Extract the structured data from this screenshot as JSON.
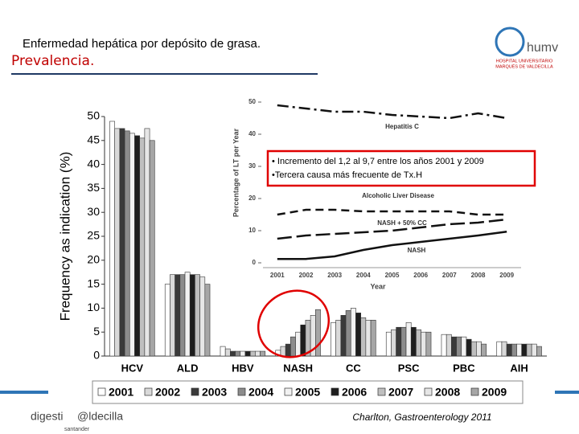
{
  "header": {
    "title": "Enfermedad hepática por depósito de grasa.",
    "subtitle": "Prevalencia."
  },
  "logo": {
    "name": "humv",
    "line1": "HOSPITAL UNIVERSITARIO",
    "line2": "MARQUÉS DE VALDECILLA"
  },
  "annotation": {
    "lines": [
      "• Incremento del 1,2 al 9,7 entre los años 2001  y 2009",
      "•Tercera causa más frecuente de Tx.H"
    ]
  },
  "footer": {
    "logo_a": "digesti",
    "logo_b": "@ldecilla",
    "logo_c": "santander",
    "citation": "Charlton, Gastroenterology 2011"
  },
  "chart_data": [
    {
      "type": "bar",
      "ylabel": "Frequency as indication (%)",
      "categories": [
        "HCV",
        "ALD",
        "HBV",
        "NASH",
        "CC",
        "PSC",
        "PBC",
        "AIH"
      ],
      "ylim": [
        0,
        50
      ],
      "yticks": [
        0,
        5,
        10,
        15,
        20,
        25,
        30,
        35,
        40,
        45,
        50
      ],
      "series": [
        {
          "name": "2001",
          "color": "#ffffff",
          "values": [
            49,
            15,
            2,
            1.2,
            7,
            5,
            4.5,
            3
          ]
        },
        {
          "name": "2002",
          "color": "#d9d9d9",
          "values": [
            47.5,
            17,
            1.5,
            2,
            7.5,
            5.5,
            4.5,
            3
          ]
        },
        {
          "name": "2003",
          "color": "#3a3a3a",
          "values": [
            47.5,
            17,
            1,
            2.5,
            8.5,
            6,
            4,
            2.5
          ]
        },
        {
          "name": "2004",
          "color": "#8c8c8c",
          "values": [
            47,
            17,
            1,
            4,
            9.5,
            6,
            4,
            2.5
          ]
        },
        {
          "name": "2005",
          "color": "#f2f2f2",
          "values": [
            46.5,
            17.5,
            1,
            5,
            10,
            7,
            4,
            2.5
          ]
        },
        {
          "name": "2006",
          "color": "#1e1e1e",
          "values": [
            46,
            17,
            1,
            6.5,
            9,
            6,
            3.5,
            2.5
          ]
        },
        {
          "name": "2007",
          "color": "#bfbfbf",
          "values": [
            45.5,
            17,
            1,
            7.5,
            8,
            5.5,
            3,
            2.5
          ]
        },
        {
          "name": "2008",
          "color": "#e6e6e6",
          "values": [
            47.5,
            16.5,
            1,
            8.5,
            7.5,
            5,
            3,
            2.5
          ]
        },
        {
          "name": "2009",
          "color": "#a6a6a6",
          "values": [
            45,
            15,
            1,
            9.7,
            7.5,
            5,
            2.5,
            2
          ]
        }
      ]
    },
    {
      "type": "line",
      "ylabel": "Percentage of LT per Year",
      "xlabel": "Year",
      "categories": [
        "2001",
        "2002",
        "2003",
        "2004",
        "2005",
        "2006",
        "2007",
        "2008",
        "2009"
      ],
      "ylim": [
        0,
        50
      ],
      "yticks": [
        0,
        10,
        20,
        30,
        40,
        50
      ],
      "series": [
        {
          "name": "Hepatitis C",
          "color": "#111111",
          "line_style": "dash-dot",
          "values": [
            49,
            48,
            47,
            47,
            46,
            45.5,
            45,
            46.5,
            45
          ]
        },
        {
          "name": "Alcoholic Liver Disease",
          "color": "#111111",
          "line_style": "dashed",
          "values": [
            15,
            16.5,
            16.5,
            16,
            16,
            16,
            16,
            15,
            15
          ]
        },
        {
          "name": "NASH + 50% CC",
          "color": "#111111",
          "line_style": "long-dashed",
          "values": [
            7.5,
            8.5,
            9,
            9.5,
            10,
            11,
            12,
            12.5,
            13.5
          ]
        },
        {
          "name": "NASH",
          "color": "#111111",
          "line_style": "solid",
          "values": [
            1.2,
            1.2,
            2,
            4,
            5.5,
            6.5,
            7.5,
            8.5,
            9.7
          ]
        }
      ]
    }
  ]
}
